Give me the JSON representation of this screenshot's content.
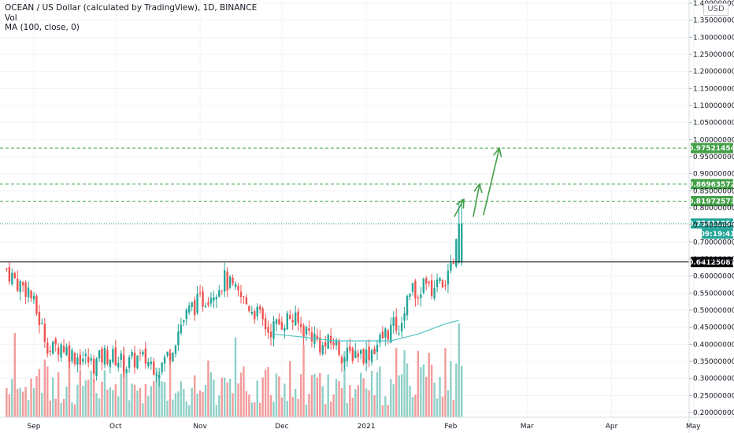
{
  "header": {
    "symbol_line": "OCEAN / US Dollar (calculated by TradingView), 1D, BINANCE",
    "vol_label": "Vol",
    "ma_label": "MA (100, close, 0)",
    "currency_button": "USD"
  },
  "colors": {
    "up": "#26a69a",
    "down": "#ef5350",
    "vol_up": "#8fd0c8",
    "vol_down": "#f29b9b",
    "ma": "#4fc3c7",
    "target": "#43a047",
    "price_tag": "#26a69a",
    "support": "#000000"
  },
  "chart_data": {
    "type": "candlestick",
    "y_axis": {
      "min": 0.2,
      "max": 1.4,
      "ticks": [
        "1.40000000",
        "1.35000000",
        "1.30000000",
        "1.25000000",
        "1.20000000",
        "1.15000000",
        "1.10000000",
        "1.05000000",
        "1.00000000",
        "0.95000000",
        "0.90000000",
        "0.85000000",
        "0.80000000",
        "0.75000000",
        "0.70000000",
        "0.65000000",
        "0.60000000",
        "0.55000000",
        "0.50000000",
        "0.45000000",
        "0.40000000",
        "0.35000000",
        "0.30000000",
        "0.25000000",
        "0.20000000"
      ]
    },
    "x_axis": {
      "labels": [
        {
          "text": "Sep",
          "date": "2020-09-01"
        },
        {
          "text": "Oct",
          "date": "2020-10-01"
        },
        {
          "text": "Nov",
          "date": "2020-11-01"
        },
        {
          "text": "Dec",
          "date": "2020-12-01"
        },
        {
          "text": "2021",
          "date": "2021-01-01"
        },
        {
          "text": "Feb",
          "date": "2021-02-01"
        },
        {
          "text": "Mar",
          "date": "2021-03-01"
        },
        {
          "text": "Apr",
          "date": "2021-04-01"
        },
        {
          "text": "May",
          "date": "2021-05-01"
        }
      ]
    },
    "horizontal_levels": [
      {
        "name": "target-3",
        "value": "0.97521454",
        "style": "dashed-green"
      },
      {
        "name": "target-2",
        "value": "0.86963572",
        "style": "dashed-green"
      },
      {
        "name": "target-1",
        "value": "0.81972573",
        "style": "dashed-green"
      },
      {
        "name": "current-price",
        "value": "0.75411254",
        "style": "dotted-teal"
      },
      {
        "name": "support",
        "value": "0.64125081",
        "style": "solid-black"
      }
    ],
    "countdown": "09:19:41",
    "price_series": [
      {
        "date": "2020-08-22",
        "close": 0.62
      },
      {
        "date": "2020-08-26",
        "close": 0.58
      },
      {
        "date": "2020-08-30",
        "close": 0.56
      },
      {
        "date": "2020-09-03",
        "close": 0.47
      },
      {
        "date": "2020-09-07",
        "close": 0.38
      },
      {
        "date": "2020-09-11",
        "close": 0.4
      },
      {
        "date": "2020-09-15",
        "close": 0.37
      },
      {
        "date": "2020-09-19",
        "close": 0.36
      },
      {
        "date": "2020-09-23",
        "close": 0.34
      },
      {
        "date": "2020-09-27",
        "close": 0.37
      },
      {
        "date": "2020-10-01",
        "close": 0.36
      },
      {
        "date": "2020-10-05",
        "close": 0.34
      },
      {
        "date": "2020-10-09",
        "close": 0.36
      },
      {
        "date": "2020-10-13",
        "close": 0.35
      },
      {
        "date": "2020-10-17",
        "close": 0.33
      },
      {
        "date": "2020-10-21",
        "close": 0.38
      },
      {
        "date": "2020-10-25",
        "close": 0.46
      },
      {
        "date": "2020-10-29",
        "close": 0.51
      },
      {
        "date": "2020-11-02",
        "close": 0.53
      },
      {
        "date": "2020-11-06",
        "close": 0.56
      },
      {
        "date": "2020-11-10",
        "close": 0.59
      },
      {
        "date": "2020-11-14",
        "close": 0.55
      },
      {
        "date": "2020-11-18",
        "close": 0.52
      },
      {
        "date": "2020-11-22",
        "close": 0.49
      },
      {
        "date": "2020-11-26",
        "close": 0.44
      },
      {
        "date": "2020-11-30",
        "close": 0.46
      },
      {
        "date": "2020-12-04",
        "close": 0.48
      },
      {
        "date": "2020-12-08",
        "close": 0.45
      },
      {
        "date": "2020-12-12",
        "close": 0.43
      },
      {
        "date": "2020-12-16",
        "close": 0.39
      },
      {
        "date": "2020-12-20",
        "close": 0.41
      },
      {
        "date": "2020-12-24",
        "close": 0.36
      },
      {
        "date": "2020-12-28",
        "close": 0.38
      },
      {
        "date": "2021-01-01",
        "close": 0.37
      },
      {
        "date": "2021-01-05",
        "close": 0.4
      },
      {
        "date": "2021-01-09",
        "close": 0.44
      },
      {
        "date": "2021-01-13",
        "close": 0.46
      },
      {
        "date": "2021-01-17",
        "close": 0.55
      },
      {
        "date": "2021-01-21",
        "close": 0.57
      },
      {
        "date": "2021-01-25",
        "close": 0.56
      },
      {
        "date": "2021-01-29",
        "close": 0.58
      },
      {
        "date": "2021-02-02",
        "close": 0.62
      },
      {
        "date": "2021-02-04",
        "close": 0.75
      }
    ],
    "ma_series": [
      {
        "date": "2020-11-28",
        "value": 0.43
      },
      {
        "date": "2020-12-10",
        "value": 0.42
      },
      {
        "date": "2020-12-20",
        "value": 0.41
      },
      {
        "date": "2021-01-01",
        "value": 0.41
      },
      {
        "date": "2021-01-10",
        "value": 0.41
      },
      {
        "date": "2021-01-20",
        "value": 0.43
      },
      {
        "date": "2021-01-30",
        "value": 0.46
      },
      {
        "date": "2021-02-04",
        "value": 0.47
      }
    ]
  }
}
